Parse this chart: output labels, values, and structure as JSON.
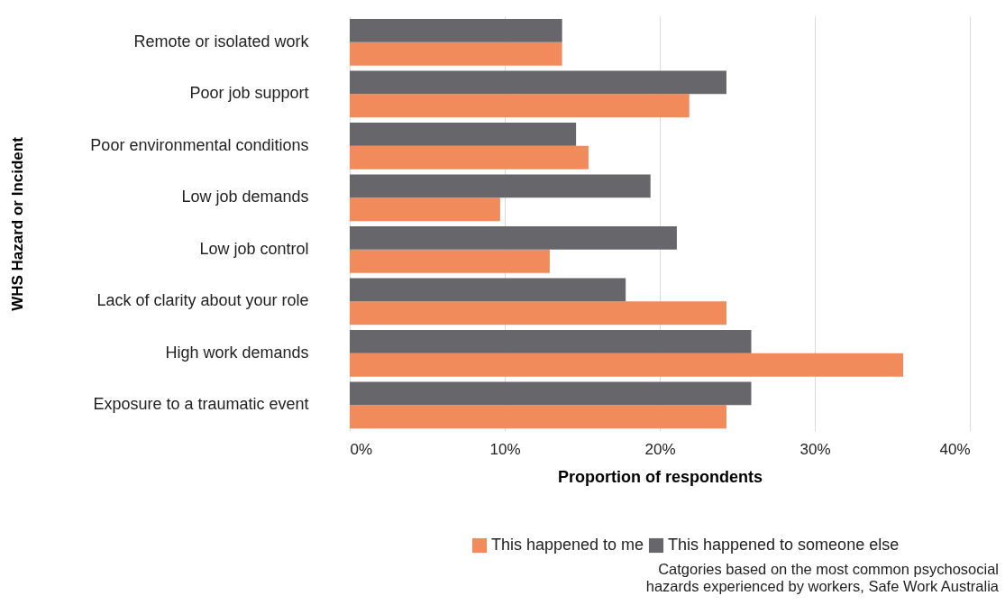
{
  "chart_data": {
    "type": "bar",
    "orientation": "horizontal",
    "ylabel": "WHS Hazard or Incident",
    "xlabel": "Proportion of respondents",
    "categories": [
      "Remote or isolated work",
      "Poor job support",
      "Poor environmental conditions",
      "Low job demands",
      "Low job control",
      "Lack of clarity about your role",
      "High work demands",
      "Exposure to a traumatic event"
    ],
    "series": [
      {
        "name": "This happened to me",
        "color": "#f28b5b",
        "values": [
          13.7,
          21.9,
          15.4,
          9.7,
          12.9,
          24.3,
          35.7,
          24.3
        ]
      },
      {
        "name": "This happened to someone else",
        "color": "#67676b",
        "values": [
          13.7,
          24.3,
          14.6,
          19.4,
          21.1,
          17.8,
          25.9,
          25.9
        ]
      }
    ],
    "xlim": [
      0,
      40
    ],
    "xticks": [
      {
        "value": 0,
        "label": "0%"
      },
      {
        "value": 10,
        "label": "10%"
      },
      {
        "value": 20,
        "label": "20%"
      },
      {
        "value": 30,
        "label": "30%"
      },
      {
        "value": 40,
        "label": "40%"
      }
    ],
    "grid": "x",
    "legend": "bottom right",
    "annotations": [
      "Catgories based on the most common psychosocial hazards experienced by workers, Safe Work Australia"
    ]
  }
}
